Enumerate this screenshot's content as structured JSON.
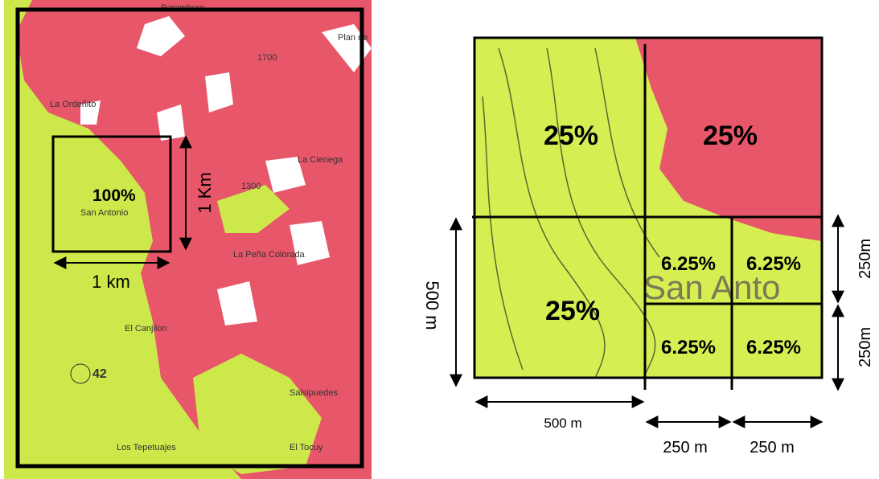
{
  "left_map": {
    "place_labels": [
      "Paramboro",
      "Plan de",
      "La Ordeñito",
      "San Antonio",
      "La Cienega",
      "La Peña Colorada",
      "El Canjilon",
      "Salsipuedes",
      "Los Tepetuajes",
      "El Tocuy",
      "1700",
      "1300",
      "42"
    ],
    "overlay": {
      "percent": "100%",
      "height_label": "1 Km",
      "width_label": "1 km"
    }
  },
  "right_map": {
    "map_text": "San Anto",
    "quadrants": [
      "25%",
      "25%",
      "25%"
    ],
    "subquadrants": [
      "6.25%",
      "6.25%",
      "6.25%",
      "6.25%"
    ],
    "dimension_labels": {
      "left": "500 m",
      "bottom": "500 m",
      "bottom_small_1": "250 m",
      "bottom_small_2": "250 m",
      "right_top": "250m",
      "right_bottom": "250m"
    }
  }
}
